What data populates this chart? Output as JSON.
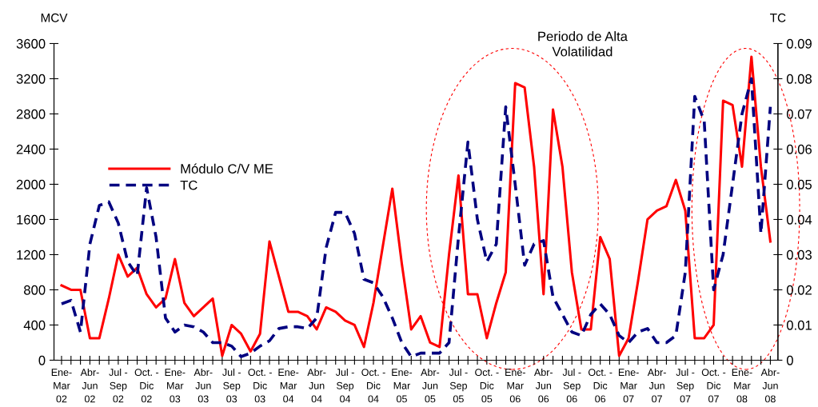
{
  "chart_data": {
    "type": "line",
    "ylabel": "MCV",
    "y2label": "TC",
    "annotations": [
      "Periodo de Alta\nVolatilidad"
    ],
    "legend": "left",
    "grid": false,
    "marker": "none",
    "categories": [
      "Ene-\nMar\n02",
      null,
      null,
      "Abr-\nJun\n02",
      null,
      null,
      "Jul -\nSep\n02",
      null,
      null,
      "Oct. -\nDic\n02",
      null,
      null,
      "Ene-\nMar\n03",
      null,
      null,
      "Abr-\nJun\n03",
      null,
      null,
      "Jul -\nSep\n03",
      null,
      null,
      "Oct. -\nDic\n03",
      null,
      null,
      "Ene-\nMar\n04",
      null,
      null,
      "Abr-\nJun\n04",
      null,
      null,
      "Jul -\nSep\n04",
      null,
      null,
      "Oct. -\nDic\n04",
      null,
      null,
      "Ene-\nMar\n05",
      null,
      null,
      "Abr-\nJun\n05",
      null,
      null,
      "Jul -\nSep\n05",
      null,
      null,
      "Oct. -\nDic\n05",
      null,
      null,
      "Ene-\nMar\n06",
      null,
      null,
      "Abr-\nJun\n06",
      null,
      null,
      "Jul -\nSep\n06",
      null,
      null,
      "Oct. -\nDic\n06",
      null,
      null,
      "Ene-\nMar\n07",
      null,
      null,
      "Abr-\nJun\n07",
      null,
      null,
      "Jul -\nSep\n07",
      null,
      null,
      "Oct. -\nDic\n07",
      null,
      null,
      "Ene-\nMar\n08",
      null,
      null,
      "Abr-\nJun\n08"
    ],
    "ylim": [
      0,
      3600
    ],
    "yticks": [
      0,
      400,
      800,
      1200,
      1600,
      2000,
      2400,
      2800,
      3200,
      3600
    ],
    "y2lim": [
      0,
      0.09
    ],
    "y2ticks": [
      0,
      0.01,
      0.02,
      0.03,
      0.04,
      0.05,
      0.06,
      0.07,
      0.08,
      0.09
    ],
    "series": [
      {
        "name": "Módulo C/V ME",
        "color": "#ff0000",
        "line_style": "solid",
        "values": [
          850,
          800,
          800,
          250,
          250,
          700,
          1200,
          950,
          1050,
          750,
          600,
          700,
          1150,
          650,
          500,
          600,
          700,
          50,
          400,
          300,
          100,
          300,
          1350,
          950,
          550,
          550,
          500,
          350,
          600,
          550,
          450,
          400,
          150,
          650,
          1300,
          1950,
          1100,
          350,
          500,
          200,
          150,
          1200,
          2100,
          750,
          750,
          250,
          650,
          1000,
          3150,
          3100,
          2200,
          750,
          2850,
          2200,
          1000,
          350,
          350,
          1400,
          1150,
          50,
          250,
          900,
          1600,
          1700,
          1750,
          2050,
          1700,
          250,
          250,
          400,
          2950,
          2900,
          2200,
          3450,
          2200,
          1350
        ]
      },
      {
        "name": "TC",
        "color": "#000080",
        "line_style": "dashed",
        "axis": "y2",
        "values": [
          0.016,
          0.017,
          0.008,
          0.033,
          0.044,
          0.045,
          0.039,
          0.028,
          0.024,
          0.049,
          0.035,
          0.012,
          0.008,
          0.01,
          0.0095,
          0.008,
          0.005,
          0.005,
          0.004,
          0.001,
          0.002,
          0.004,
          0.0055,
          0.009,
          0.0095,
          0.0095,
          0.009,
          0.012,
          0.032,
          0.042,
          0.042,
          0.036,
          0.023,
          0.022,
          0.018,
          0.012,
          0.005,
          0.001,
          0.002,
          0.002,
          0.002,
          0.005,
          0.035,
          0.062,
          0.04,
          0.028,
          0.033,
          0.072,
          0.05,
          0.027,
          0.033,
          0.034,
          0.018,
          0.013,
          0.008,
          0.007,
          0.013,
          0.016,
          0.013,
          0.007,
          0.005,
          0.008,
          0.009,
          0.005,
          0.005,
          0.007,
          0.025,
          0.075,
          0.068,
          0.02,
          0.03,
          0.05,
          0.07,
          0.08,
          0.036,
          0.072
        ]
      }
    ]
  }
}
